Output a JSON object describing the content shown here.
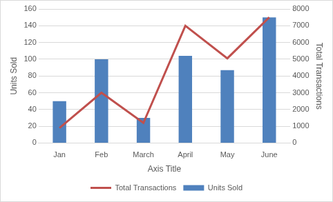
{
  "chart_data": {
    "type": "bar",
    "categories": [
      "Jan",
      "Feb",
      "March",
      "April",
      "May",
      "June"
    ],
    "series": [
      {
        "name": "Units Sold",
        "type": "bar",
        "color": "#4f81bd",
        "values": [
          50,
          100,
          30,
          104,
          87,
          150
        ]
      },
      {
        "name": "Total Transactions",
        "type": "line",
        "color": "#c0504d",
        "axis": "y2",
        "values": [
          900,
          3000,
          1200,
          7000,
          5050,
          7500
        ]
      }
    ],
    "x_label": "Axis Title",
    "y_label": "Units Sold",
    "y2_label": "Total Transactions",
    "ylim": [
      0,
      160
    ],
    "yticks": [
      0,
      20,
      40,
      60,
      80,
      100,
      120,
      140,
      160
    ],
    "y2lim": [
      0,
      8000
    ],
    "y2ticks": [
      0,
      1000,
      2000,
      3000,
      4000,
      5000,
      6000,
      7000,
      8000
    ],
    "grid": true,
    "legend": "bottom"
  }
}
